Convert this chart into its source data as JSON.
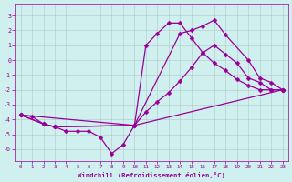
{
  "xlabel": "Windchill (Refroidissement éolien,°C)",
  "bg_color": "#cff0ee",
  "line_color": "#990099",
  "grid_color": "#b0c8c8",
  "xlim": [
    -0.5,
    23.5
  ],
  "ylim": [
    -6.8,
    3.8
  ],
  "xticks": [
    0,
    1,
    2,
    3,
    4,
    5,
    6,
    7,
    8,
    9,
    10,
    11,
    12,
    13,
    14,
    15,
    16,
    17,
    18,
    19,
    20,
    21,
    22,
    23
  ],
  "yticks": [
    -6,
    -5,
    -4,
    -3,
    -2,
    -1,
    0,
    1,
    2,
    3
  ],
  "line1_x": [
    0,
    1,
    2,
    3,
    4,
    5,
    6,
    7,
    8,
    9,
    10,
    11,
    12,
    13,
    14,
    15,
    16,
    17,
    18,
    19,
    20,
    21,
    22,
    23
  ],
  "line1_y": [
    -3.7,
    -3.8,
    -4.3,
    -4.5,
    -4.8,
    -4.8,
    -4.8,
    -5.2,
    -6.3,
    -5.7,
    -4.4,
    -3.5,
    -2.8,
    -2.2,
    -1.4,
    -0.5,
    0.5,
    1.0,
    0.4,
    -0.2,
    -1.2,
    -1.5,
    -2.0,
    -2.0
  ],
  "line2_x": [
    0,
    2,
    3,
    10,
    23
  ],
  "line2_y": [
    -3.7,
    -4.3,
    -4.5,
    -4.4,
    -2.0
  ],
  "line3_x": [
    0,
    2,
    3,
    10,
    11,
    12,
    13,
    14,
    15,
    16,
    17,
    18,
    19,
    20,
    21,
    22,
    23
  ],
  "line3_y": [
    -3.7,
    -4.3,
    -4.5,
    -4.4,
    1.0,
    1.8,
    2.5,
    2.5,
    1.5,
    0.5,
    -0.2,
    -0.7,
    -1.3,
    -1.7,
    -2.0,
    -2.0,
    -2.0
  ],
  "line4_x": [
    0,
    10,
    14,
    15,
    16,
    17,
    18,
    20,
    21,
    22,
    23
  ],
  "line4_y": [
    -3.7,
    -4.4,
    1.8,
    2.0,
    2.3,
    2.7,
    1.7,
    0.0,
    -1.2,
    -1.5,
    -2.0
  ]
}
